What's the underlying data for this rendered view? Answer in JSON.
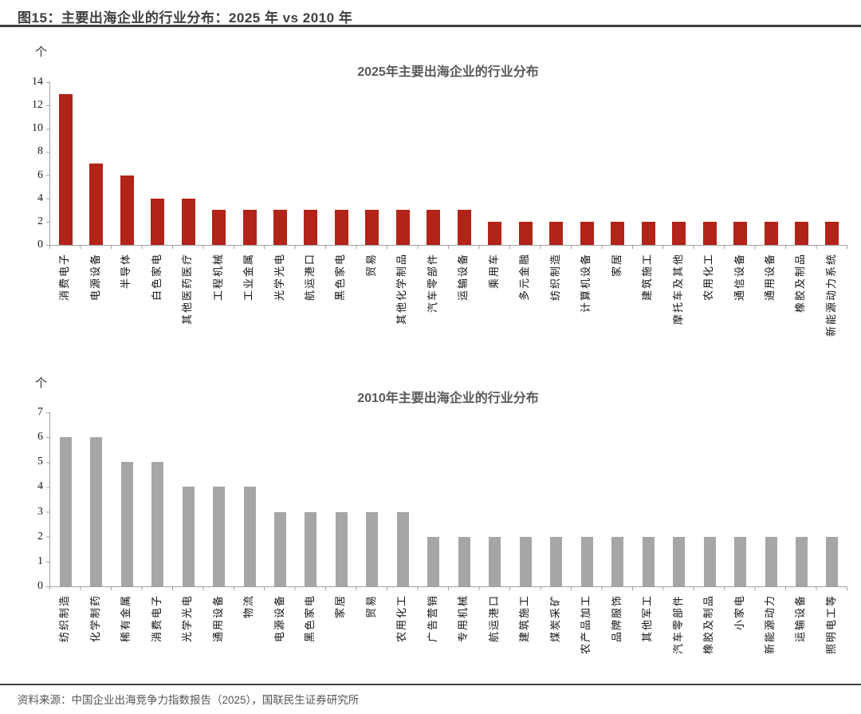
{
  "figure": {
    "title": "图15：主要出海企业的行业分布：2025 年 vs 2010 年",
    "source": "资料来源：中国企业出海竞争力指数报告（2025），国联民生证券研究所"
  },
  "colors": {
    "bar_2025": "#B22318",
    "bar_2010": "#A6A6A6",
    "axis": "#A0A0A0",
    "chart_title_text": "#595959",
    "header_text": "#3F3F3F"
  },
  "chart_data": [
    {
      "type": "bar",
      "title": "2025年主要出海企业的行业分布",
      "unit_label": "个",
      "ylim": [
        0,
        14
      ],
      "yticks": [
        0,
        2,
        4,
        6,
        8,
        10,
        12,
        14
      ],
      "grid": false,
      "legend": "none",
      "bar_color": "#B22318",
      "categories": [
        "消费电子",
        "电源设备",
        "半导体",
        "白色家电",
        "其他医药医疗",
        "工程机械",
        "工业金属",
        "光学光电",
        "航运港口",
        "黑色家电",
        "贸易",
        "其他化学制品",
        "汽车零部件",
        "运输设备",
        "乘用车",
        "多元金融",
        "纺织制造",
        "计算机设备",
        "家居",
        "建筑施工",
        "摩托车及其他",
        "农用化工",
        "通信设备",
        "通用设备",
        "橡胶及制品",
        "新能源动力系统"
      ],
      "values": [
        13,
        7,
        6,
        4,
        4,
        3,
        3,
        3,
        3,
        3,
        3,
        3,
        3,
        3,
        2,
        2,
        2,
        2,
        2,
        2,
        2,
        2,
        2,
        2,
        2,
        2
      ]
    },
    {
      "type": "bar",
      "title": "2010年主要出海企业的行业分布",
      "unit_label": "个",
      "ylim": [
        0,
        7
      ],
      "yticks": [
        0,
        1,
        2,
        3,
        4,
        5,
        6,
        7
      ],
      "grid": false,
      "legend": "none",
      "bar_color": "#A6A6A6",
      "categories": [
        "纺织制造",
        "化学制药",
        "稀有金属",
        "消费电子",
        "光学光电",
        "通用设备",
        "物流",
        "电源设备",
        "黑色家电",
        "家居",
        "贸易",
        "农用化工",
        "广告营销",
        "专用机械",
        "航运港口",
        "建筑施工",
        "煤炭采矿",
        "农产品加工",
        "品牌服饰",
        "其他军工",
        "汽车零部件",
        "橡胶及制品",
        "小家电",
        "新能源动力",
        "运输设备",
        "照明电工等"
      ],
      "values": [
        6,
        6,
        5,
        5,
        4,
        4,
        4,
        3,
        3,
        3,
        3,
        3,
        2,
        2,
        2,
        2,
        2,
        2,
        2,
        2,
        2,
        2,
        2,
        2,
        2,
        2
      ]
    }
  ]
}
